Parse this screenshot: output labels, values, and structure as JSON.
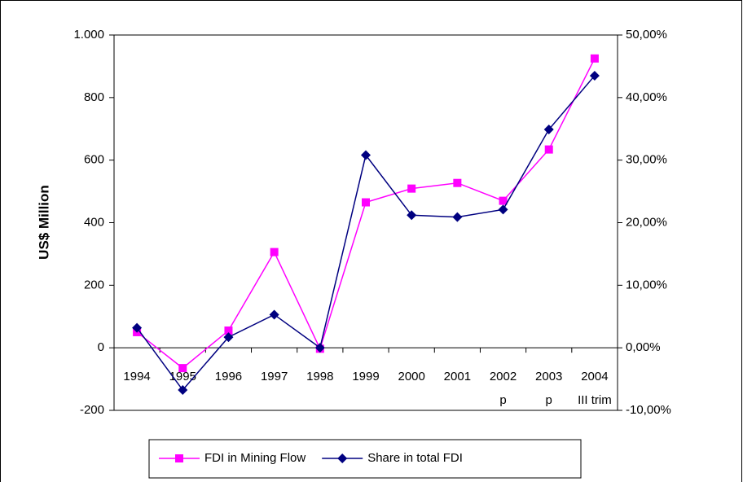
{
  "chart_data": {
    "type": "line",
    "y_label": "US$ Million",
    "categories": [
      "1994",
      "1995",
      "1996",
      "1997",
      "1998",
      "1999",
      "2000",
      "2001",
      "2002\np",
      "2003\np",
      "2004\nIII trim"
    ],
    "series": [
      {
        "name": "FDI in Mining Flow",
        "color": "#ff00ff",
        "marker": "square",
        "values": [
          50,
          -65,
          55,
          306,
          -3,
          465,
          509,
          527,
          470,
          634,
          925
        ]
      },
      {
        "name": "Share in total FDI",
        "color": "#000080",
        "marker": "diamond",
        "axis": "y2",
        "values": [
          3.2,
          -6.75,
          1.7,
          5.3,
          0,
          30.8,
          21.2,
          20.9,
          22.1,
          34.9,
          43.5
        ]
      }
    ],
    "ylim": [
      -200,
      1000
    ],
    "yticks": [
      -200,
      0,
      200,
      400,
      600,
      800,
      {
        "value": 1000,
        "label": "1.000"
      }
    ],
    "y2lim": [
      -10,
      50
    ],
    "y2ticks": [
      {
        "value": -10,
        "label": "-10,00%"
      },
      {
        "value": 0,
        "label": "0,00%"
      },
      {
        "value": 10,
        "label": "10,00%"
      },
      {
        "value": 20,
        "label": "20,00%"
      },
      {
        "value": 30,
        "label": "30,00%"
      },
      {
        "value": 40,
        "label": "40,00%"
      },
      {
        "value": 50,
        "label": "50,00%"
      }
    ],
    "legend": "bottom"
  }
}
